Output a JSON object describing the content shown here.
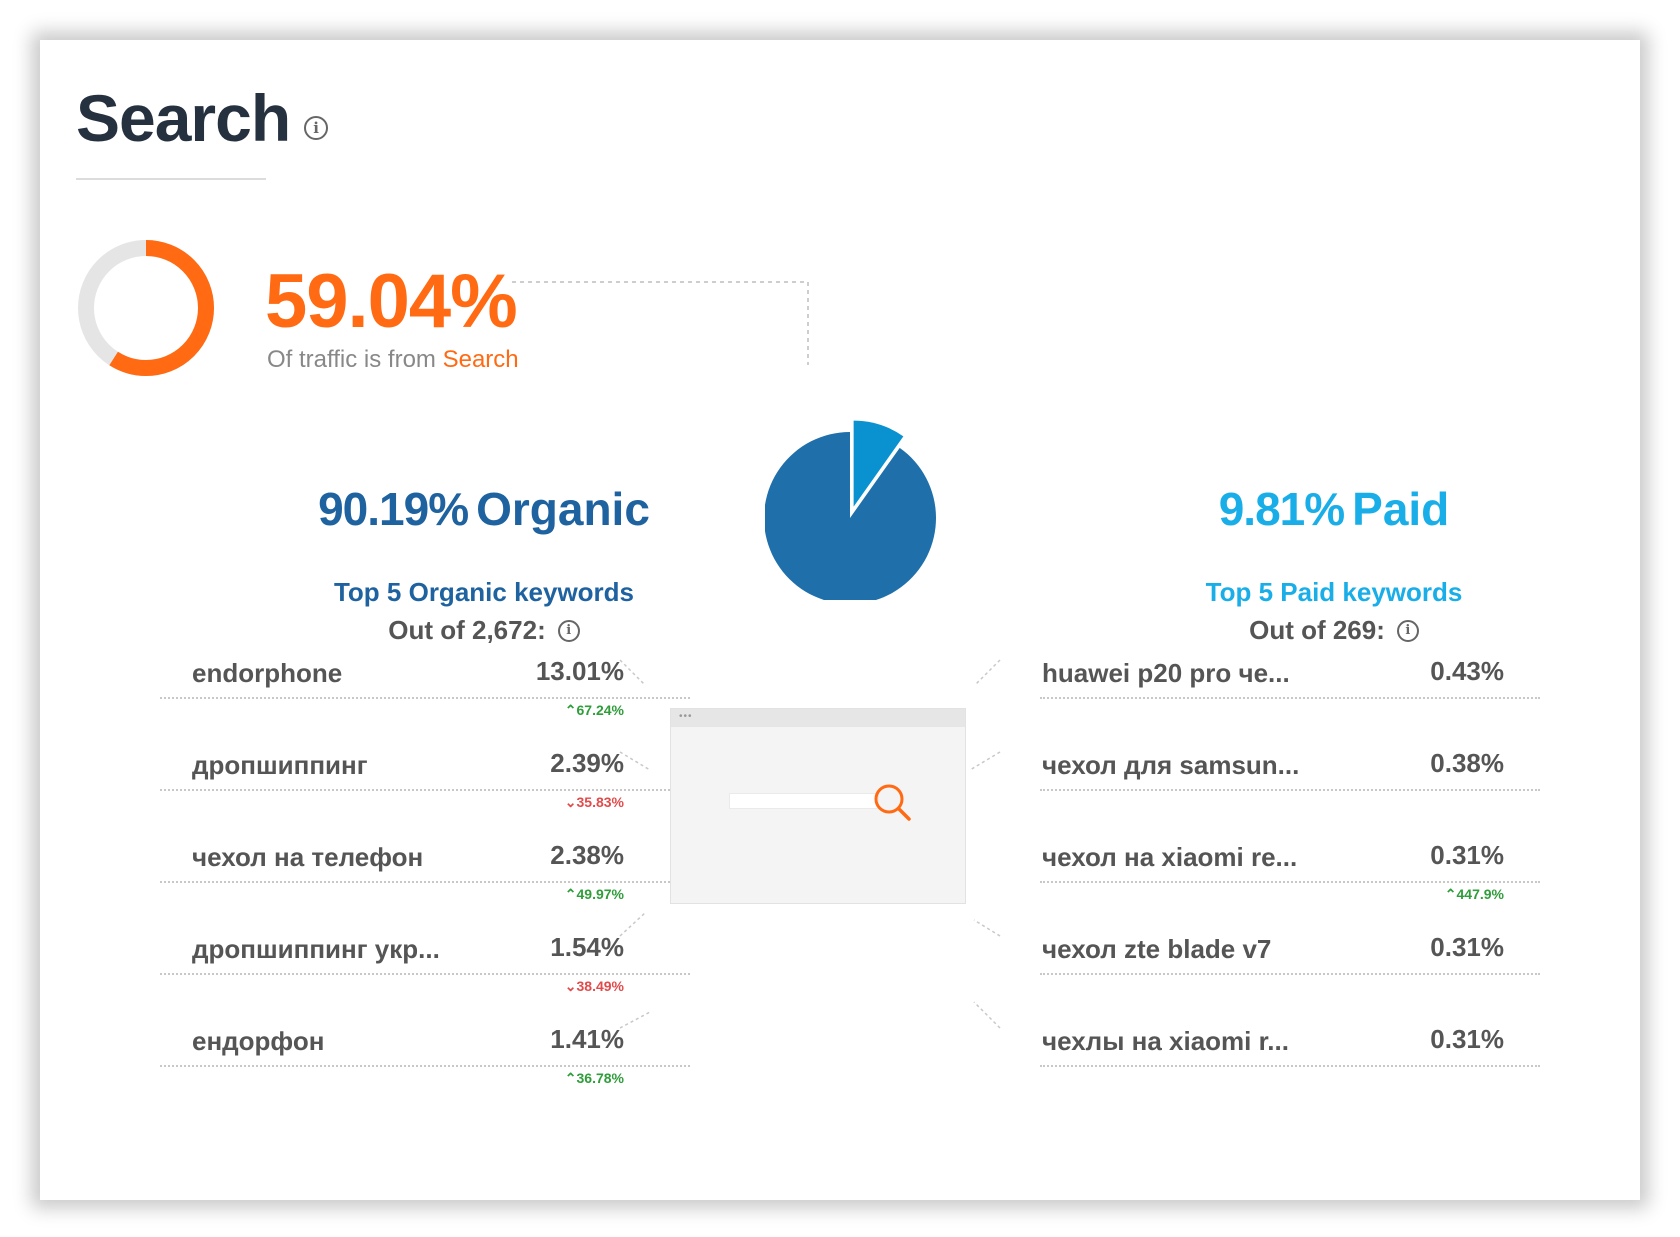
{
  "header": {
    "title": "Search",
    "info_icon": "info-icon"
  },
  "traffic": {
    "share_percent": "59.04%",
    "share_value": 59.04,
    "label_prefix": "Of traffic is from",
    "label_highlight": "Search"
  },
  "colors": {
    "accent_orange": "#ff6a13",
    "organic_blue": "#1f62a0",
    "paid_blue": "#1aaee8",
    "title_dark": "#263140",
    "change_up": "#2f9d3a",
    "change_down": "#e24b4b"
  },
  "chart_data": {
    "type": "pie",
    "categories": [
      "Organic",
      "Paid"
    ],
    "values": [
      90.19,
      9.81
    ]
  },
  "organic": {
    "percent": "90.19%",
    "label": "Organic",
    "keywords_title": "Top 5 Organic keywords",
    "keywords_sub": "Out of 2,672:",
    "keywords": [
      {
        "name": "endorphone",
        "value": "13.01%",
        "change": "67.24%",
        "direction": "up"
      },
      {
        "name": "дропшиппинг",
        "value": "2.39%",
        "change": "35.83%",
        "direction": "down"
      },
      {
        "name": "чехол на телефон",
        "value": "2.38%",
        "change": "49.97%",
        "direction": "up"
      },
      {
        "name": "дропшиппинг укр...",
        "value": "1.54%",
        "change": "38.49%",
        "direction": "down"
      },
      {
        "name": "ендорфон",
        "value": "1.41%",
        "change": "36.78%",
        "direction": "up"
      }
    ]
  },
  "paid": {
    "percent": "9.81%",
    "label": "Paid",
    "keywords_title": "Top 5 Paid keywords",
    "keywords_sub": "Out of 269:",
    "keywords": [
      {
        "name": "huawei p20 pro че...",
        "value": "0.43%",
        "change": "",
        "direction": ""
      },
      {
        "name": "чехол для samsun...",
        "value": "0.38%",
        "change": "",
        "direction": ""
      },
      {
        "name": "чехол на xiaomi re...",
        "value": "0.31%",
        "change": "447.9%",
        "direction": "up"
      },
      {
        "name": "чехол zte blade v7",
        "value": "0.31%",
        "change": "",
        "direction": ""
      },
      {
        "name": "чехлы на xiaomi r...",
        "value": "0.31%",
        "change": "",
        "direction": ""
      }
    ]
  },
  "browser_illustration": {
    "dots": "•••",
    "search_icon": "magnifier-icon"
  }
}
